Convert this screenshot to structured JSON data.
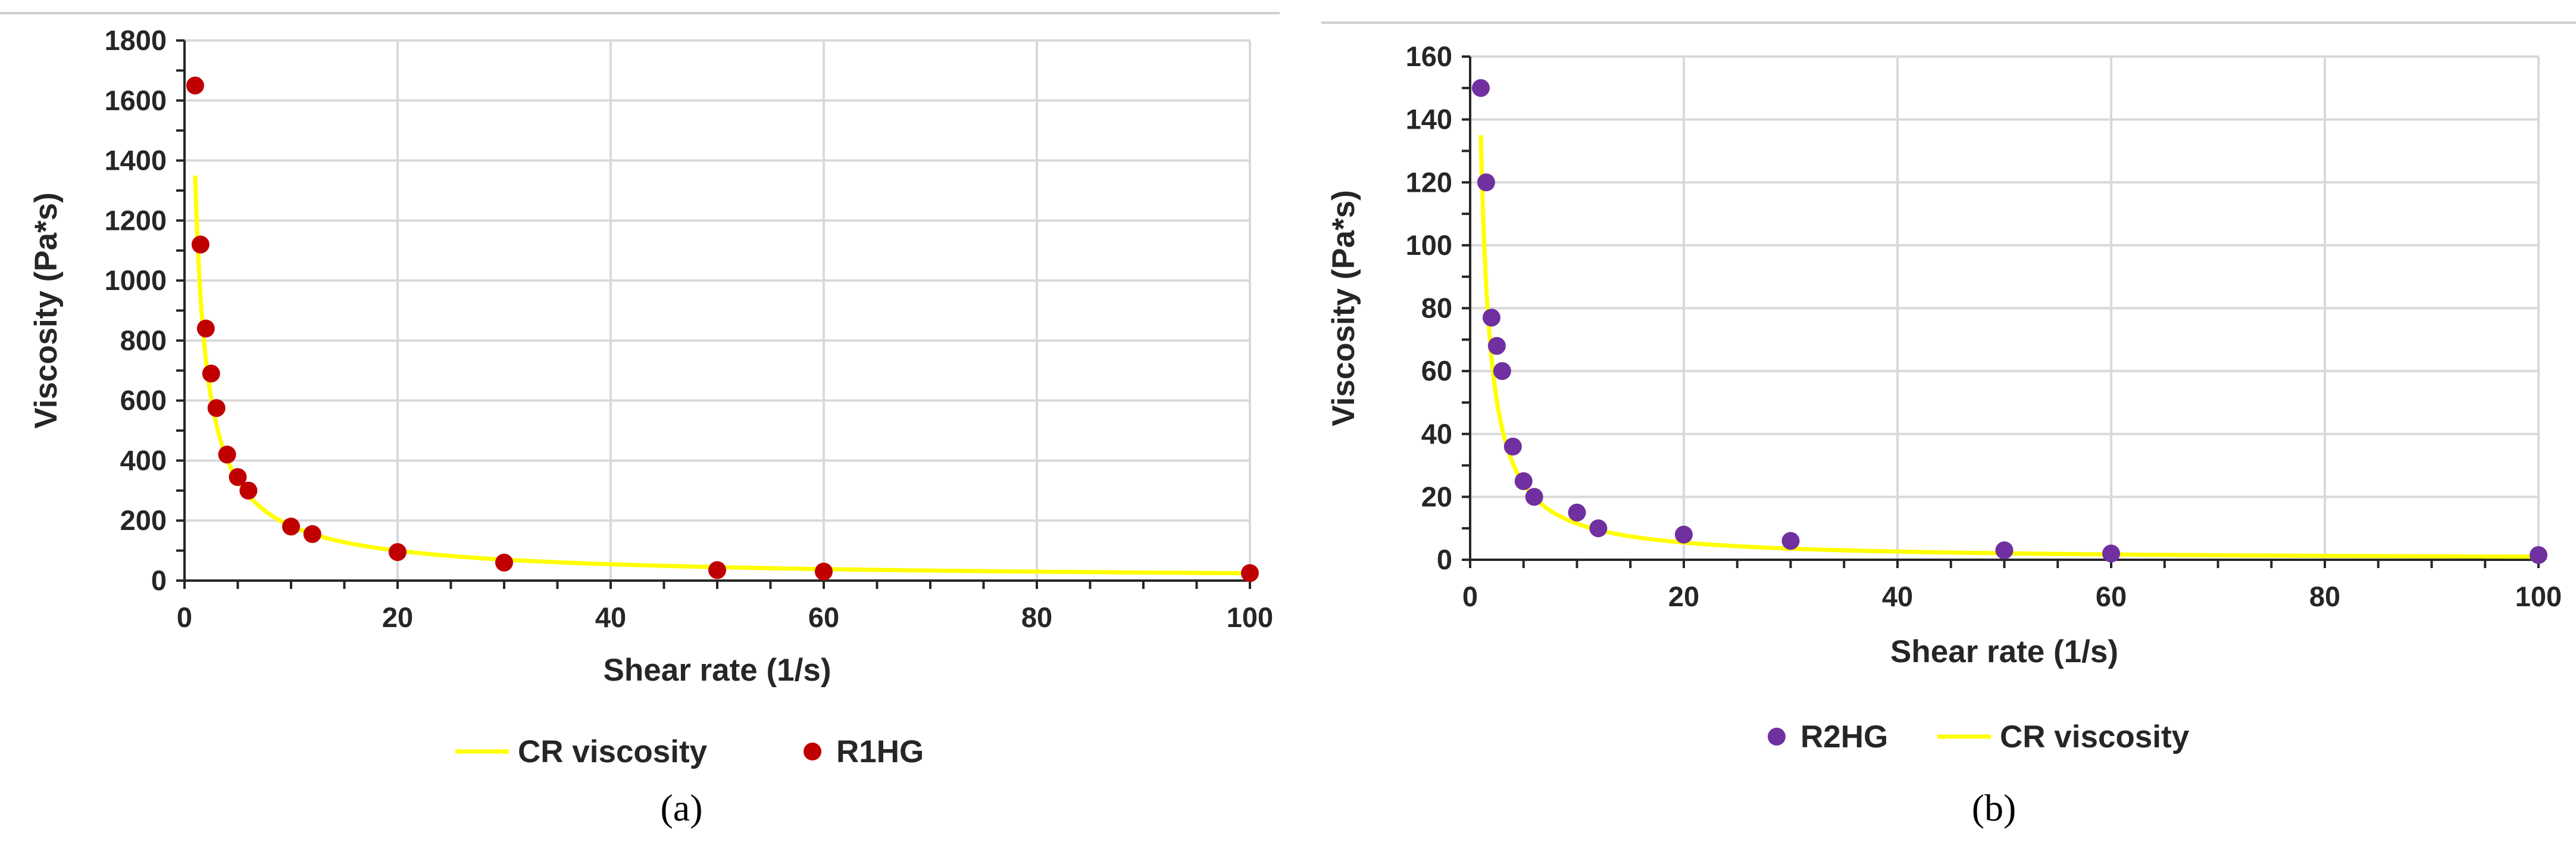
{
  "chart_data": [
    {
      "type": "scatter",
      "panel_label": "(a)",
      "xlabel": "Shear rate (1/s)",
      "ylabel": "Viscosity (Pa*s)",
      "xlim": [
        0,
        100
      ],
      "ylim": [
        0,
        1800
      ],
      "x_ticks": [
        0,
        20,
        40,
        60,
        80,
        100
      ],
      "y_ticks": [
        0,
        200,
        400,
        600,
        800,
        1000,
        1200,
        1400,
        1600,
        1800
      ],
      "grid": true,
      "legend_position": "bottom",
      "legend_order": [
        "CR viscosity",
        "R1HG"
      ],
      "series": [
        {
          "name": "R1HG",
          "kind": "points",
          "color": "#c00000",
          "points": [
            [
              1,
              1650
            ],
            [
              1.5,
              1120
            ],
            [
              2,
              840
            ],
            [
              2.5,
              690
            ],
            [
              3,
              575
            ],
            [
              4,
              420
            ],
            [
              5,
              345
            ],
            [
              6,
              300
            ],
            [
              10,
              180
            ],
            [
              12,
              155
            ],
            [
              20,
              95
            ],
            [
              30,
              60
            ],
            [
              50,
              35
            ],
            [
              60,
              30
            ],
            [
              100,
              25
            ]
          ]
        },
        {
          "name": "CR viscosity",
          "kind": "line",
          "color": "#ffff00",
          "model": {
            "form": "power",
            "k": 1350,
            "n": -0.87
          },
          "x_range": [
            1,
            100
          ]
        }
      ]
    },
    {
      "type": "scatter",
      "panel_label": "(b)",
      "xlabel": "Shear rate (1/s)",
      "ylabel": "Viscosity (Pa*s)",
      "xlim": [
        0,
        100
      ],
      "ylim": [
        0,
        160
      ],
      "x_ticks": [
        0,
        20,
        40,
        60,
        80,
        100
      ],
      "y_ticks": [
        0,
        20,
        40,
        60,
        80,
        100,
        120,
        140,
        160
      ],
      "grid": true,
      "legend_position": "bottom",
      "legend_order": [
        "R2HG",
        "CR viscosity"
      ],
      "series": [
        {
          "name": "R2HG",
          "kind": "points",
          "color": "#7030a0",
          "points": [
            [
              1,
              150
            ],
            [
              1.5,
              120
            ],
            [
              2,
              77
            ],
            [
              2.5,
              68
            ],
            [
              3,
              60
            ],
            [
              4,
              36
            ],
            [
              5,
              25
            ],
            [
              6,
              20
            ],
            [
              10,
              15
            ],
            [
              12,
              10
            ],
            [
              20,
              8
            ],
            [
              30,
              6
            ],
            [
              50,
              3
            ],
            [
              60,
              2
            ],
            [
              100,
              1.5
            ]
          ]
        },
        {
          "name": "CR viscosity",
          "kind": "line",
          "color": "#ffff00",
          "model": {
            "form": "power",
            "k": 135,
            "n": -1.07
          },
          "x_range": [
            1,
            100
          ]
        }
      ]
    }
  ]
}
